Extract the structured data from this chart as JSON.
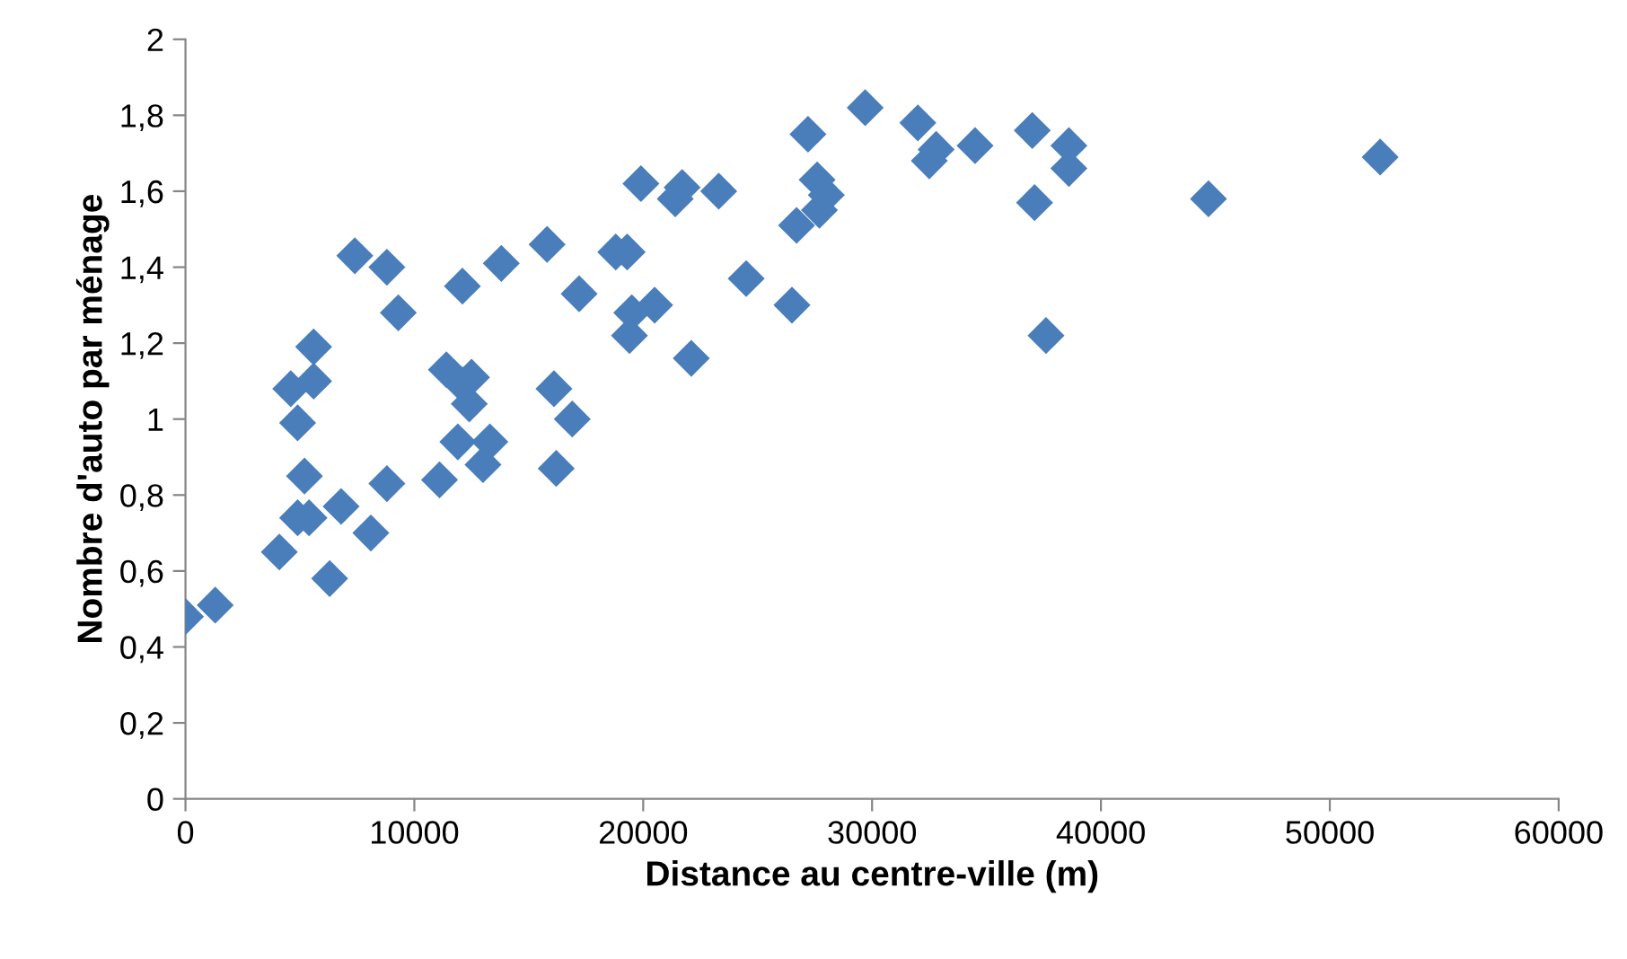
{
  "chart_data": {
    "type": "scatter",
    "xlabel": "Distance au centre-ville (m)",
    "ylabel": "Nombre d'auto par ménage",
    "marker": "diamond",
    "grid": false,
    "legend": false,
    "xlim": [
      0,
      60000
    ],
    "xticks": [
      0,
      10000,
      20000,
      30000,
      40000,
      50000,
      60000
    ],
    "ylim": [
      0,
      2
    ],
    "yticks": [
      {
        "value": 0,
        "label": "0"
      },
      {
        "value": 0.2,
        "label": "0,2"
      },
      {
        "value": 0.4,
        "label": "0,4"
      },
      {
        "value": 0.6,
        "label": "0,6"
      },
      {
        "value": 0.8,
        "label": "0,8"
      },
      {
        "value": 1,
        "label": "1"
      },
      {
        "value": 1.2,
        "label": "1,2"
      },
      {
        "value": 1.4,
        "label": "1,4"
      },
      {
        "value": 1.6,
        "label": "1,6"
      },
      {
        "value": 1.8,
        "label": "1,8"
      },
      {
        "value": 2,
        "label": "2"
      }
    ],
    "series": [
      {
        "color": "#4a7ebb",
        "x": [
          0,
          1300,
          4100,
          6300,
          4900,
          5400,
          6800,
          8100,
          5200,
          8800,
          4900,
          4600,
          5600,
          5600,
          9300,
          8800,
          7400,
          13800,
          12100,
          15800,
          11400,
          12100,
          12500,
          12400,
          11900,
          13000,
          13300,
          11100,
          16100,
          16900,
          16200,
          17200,
          18800,
          19300,
          19400,
          19500,
          20500,
          19900,
          22100,
          21400,
          21700,
          23300,
          24500,
          26500,
          26700,
          27200,
          27600,
          28000,
          27700,
          29700,
          32000,
          32500,
          32800,
          34500,
          37000,
          37100,
          37600,
          38600,
          38600,
          44700,
          52200
        ],
        "values": [
          0.48,
          0.51,
          0.65,
          0.58,
          0.74,
          0.74,
          0.77,
          0.7,
          0.85,
          0.83,
          0.99,
          1.08,
          1.1,
          1.19,
          1.28,
          1.4,
          1.43,
          1.41,
          1.35,
          1.46,
          1.13,
          1.09,
          1.11,
          1.04,
          0.94,
          0.88,
          0.94,
          0.84,
          1.08,
          1.0,
          0.87,
          1.33,
          1.44,
          1.44,
          1.22,
          1.28,
          1.3,
          1.62,
          1.16,
          1.58,
          1.61,
          1.6,
          1.37,
          1.3,
          1.51,
          1.75,
          1.63,
          1.59,
          1.55,
          1.82,
          1.78,
          1.68,
          1.71,
          1.72,
          1.76,
          1.57,
          1.22,
          1.72,
          1.66,
          1.58,
          1.69
        ]
      }
    ]
  }
}
